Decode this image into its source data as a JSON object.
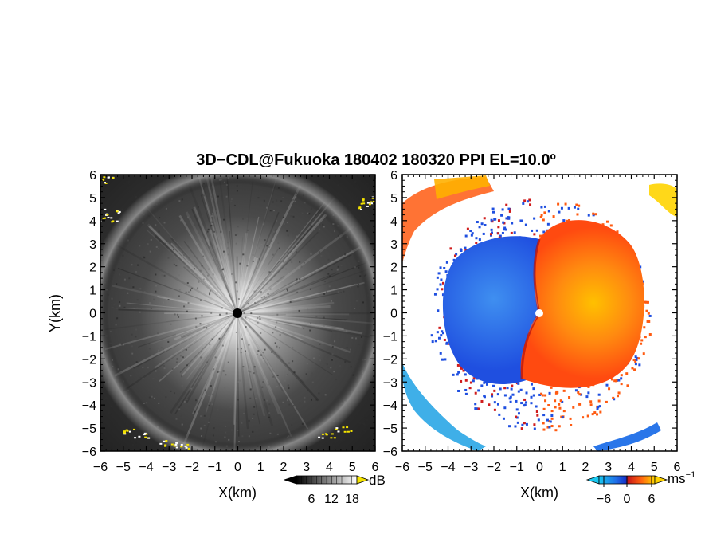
{
  "title": "3D−CDL@Fukuoka 180402 180320 PPI EL=10.0º",
  "chart_data": [
    {
      "type": "heatmap",
      "panel": "left",
      "quantity_unit": "dB",
      "xlabel": "X(km)",
      "ylabel": "Y(km)",
      "xlim": [
        -6,
        6
      ],
      "ylim": [
        -6,
        6
      ],
      "ticks": [
        "−6",
        "−5",
        "−4",
        "−3",
        "−2",
        "−1",
        "0",
        "1",
        "2",
        "3",
        "4",
        "5",
        "6"
      ],
      "colormap": "grayscale",
      "colorbar": {
        "unit": "dB",
        "tick_labels": [
          "6",
          "12",
          "18"
        ],
        "range": [
          0,
          24
        ],
        "extends": "both",
        "high_color": "#f5e400"
      },
      "colors": {
        "background": "#3c3c3c",
        "center_glow": "#dedede",
        "edge_highlight": "#f5e400",
        "center_dot": "#000000"
      }
    },
    {
      "type": "heatmap",
      "panel": "right",
      "quantity_unit": "ms⁻¹",
      "xlabel": "X(km)",
      "ylabel": "",
      "xlim": [
        -6,
        6
      ],
      "ylim": [
        -6,
        6
      ],
      "ticks": [
        "−6",
        "−5",
        "−4",
        "−3",
        "−2",
        "−1",
        "0",
        "1",
        "2",
        "3",
        "4",
        "5",
        "6"
      ],
      "colormap": "blue-red-yellow diverging",
      "colorbar": {
        "unit": "ms",
        "unit_exponent": "−1",
        "tick_labels": [
          "−6",
          "0",
          "6"
        ],
        "range": [
          -9,
          9
        ],
        "extends": "both"
      },
      "colors": {
        "negative": "#1f4fe0",
        "negative_light": "#3aa8e8",
        "zero": "#c81818",
        "positive": "#ff6a10",
        "positive_high": "#ffd400",
        "center_dot": "#ffffff"
      }
    }
  ]
}
